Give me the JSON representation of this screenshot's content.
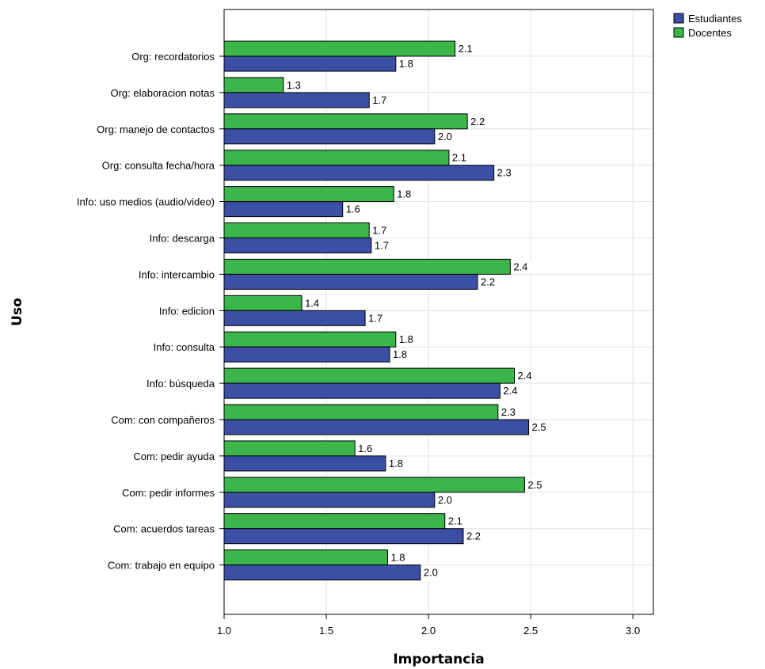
{
  "chart_data": {
    "type": "bar",
    "orientation": "horizontal",
    "xlabel": "Importancia",
    "ylabel": "Uso",
    "xlim": [
      1.0,
      3.1
    ],
    "xticks": [
      "1.0",
      "1.5",
      "2.0",
      "2.5",
      "3.0"
    ],
    "xtick_values": [
      1.0,
      1.5,
      2.0,
      2.5,
      3.0
    ],
    "grid": true,
    "legend_position": "top-right",
    "categories": [
      "Org: recordatorios",
      "Org: elaboracion notas",
      "Org: manejo de contactos",
      "Org: consulta fecha/hora",
      "Info: uso medios (audio/video)",
      "Info: descarga",
      "Info: intercambio",
      "Info: edicion",
      "Info: consulta",
      "Info: búsqueda",
      "Com: con compañeros",
      "Com: pedir ayuda",
      "Com: pedir informes",
      "Com: acuerdos tareas",
      "Com: trabajo en equipo"
    ],
    "series": [
      {
        "name": "Docentes",
        "color": "#3cb54a",
        "values": [
          2.13,
          1.29,
          2.19,
          2.1,
          1.83,
          1.71,
          2.4,
          1.38,
          1.84,
          2.42,
          2.34,
          1.64,
          2.47,
          2.08,
          1.8
        ],
        "labels": [
          "2.1",
          "1.3",
          "2.2",
          "2.1",
          "1.8",
          "1.7",
          "2.4",
          "1.4",
          "1.8",
          "2.4",
          "2.3",
          "1.6",
          "2.5",
          "2.1",
          "1.8"
        ]
      },
      {
        "name": "Estudiantes",
        "color": "#3b4fa5",
        "values": [
          1.84,
          1.71,
          2.03,
          2.32,
          1.58,
          1.72,
          2.24,
          1.69,
          1.81,
          2.35,
          2.49,
          1.79,
          2.03,
          2.17,
          1.96
        ],
        "labels": [
          "1.8",
          "1.7",
          "2.0",
          "2.3",
          "1.6",
          "1.7",
          "2.2",
          "1.7",
          "1.8",
          "2.4",
          "2.5",
          "1.8",
          "2.0",
          "2.2",
          "2.0"
        ]
      }
    ],
    "legend": [
      {
        "name": "Estudiantes",
        "color": "#3b4fa5"
      },
      {
        "name": "Docentes",
        "color": "#3cb54a"
      }
    ]
  }
}
